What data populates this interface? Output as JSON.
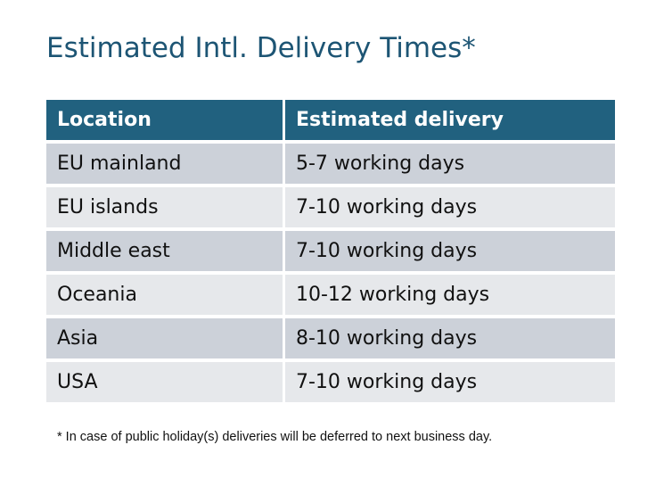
{
  "title": "Estimated Intl. Delivery Times*",
  "table": {
    "headers": [
      "Location",
      "Estimated delivery"
    ],
    "rows": [
      [
        "EU mainland",
        "5-7 working days"
      ],
      [
        "EU islands",
        "7-10 working days"
      ],
      [
        "Middle east",
        "7-10 working days"
      ],
      [
        "Oceania",
        "10-12 working days"
      ],
      [
        "Asia",
        "8-10 working days"
      ],
      [
        "USA",
        "7-10 working days"
      ]
    ]
  },
  "footnote": "* In case of public holiday(s) deliveries will be deferred to next business day.",
  "colors": {
    "header": "#21617f",
    "title": "#1d5574",
    "row_dark": "#ccd1d9",
    "row_light": "#e6e8eb"
  }
}
